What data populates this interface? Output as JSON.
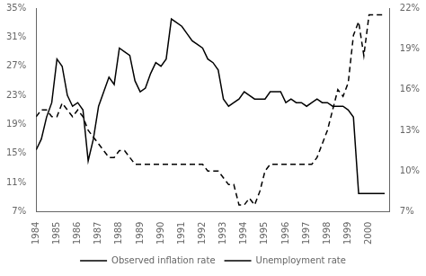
{
  "chart_data": {
    "type": "line",
    "x": [
      1984.0,
      1984.25,
      1984.5,
      1984.75,
      1985.0,
      1985.25,
      1985.5,
      1985.75,
      1986.0,
      1986.25,
      1986.5,
      1986.75,
      1987.0,
      1987.25,
      1987.5,
      1987.75,
      1988.0,
      1988.25,
      1988.5,
      1988.75,
      1989.0,
      1989.25,
      1989.5,
      1989.75,
      1990.0,
      1990.25,
      1990.5,
      1990.75,
      1991.0,
      1991.25,
      1991.5,
      1991.75,
      1992.0,
      1992.25,
      1992.5,
      1992.75,
      1993.0,
      1993.25,
      1993.5,
      1993.75,
      1994.0,
      1994.25,
      1994.5,
      1994.75,
      1995.0,
      1995.25,
      1995.5,
      1995.75,
      1996.0,
      1996.25,
      1996.5,
      1996.75,
      1997.0,
      1997.25,
      1997.5,
      1997.75,
      1998.0,
      1998.25,
      1998.5,
      1998.75,
      1999.0,
      1999.25,
      1999.5,
      1999.75,
      2000.0,
      2000.25,
      2000.5,
      2000.75
    ],
    "series": [
      {
        "name": "Observed inflation rate",
        "color": "#000000",
        "line_style": "solid",
        "values": [
          15.5,
          17.0,
          20.0,
          22.0,
          28.0,
          27.0,
          23.0,
          21.5,
          22.0,
          21.0,
          14.0,
          17.0,
          21.5,
          23.5,
          25.5,
          24.5,
          29.5,
          29.0,
          28.5,
          25.0,
          23.5,
          24.0,
          26.0,
          27.5,
          27.0,
          28.0,
          33.5,
          33.0,
          32.5,
          31.5,
          30.5,
          30.0,
          29.5,
          28.0,
          27.5,
          26.5,
          22.5,
          21.5,
          22.0,
          22.5,
          23.5,
          23.0,
          22.5,
          22.5,
          22.5,
          23.5,
          23.5,
          23.5,
          22.0,
          22.5,
          22.0,
          22.0,
          21.5,
          22.0,
          22.5,
          22.0,
          22.0,
          21.5,
          21.5,
          21.5,
          21.0,
          20.0,
          9.5,
          9.5,
          9.5,
          9.5,
          9.5,
          9.5
        ]
      },
      {
        "name": "Unemployment rate",
        "color": "#000000",
        "line_style": "dashed",
        "axis": "y2",
        "values": [
          14.0,
          14.5,
          14.5,
          14.0,
          14.0,
          15.0,
          14.5,
          14.0,
          14.5,
          14.0,
          13.0,
          12.5,
          12.0,
          11.5,
          11.0,
          11.0,
          11.5,
          11.5,
          11.0,
          10.5,
          10.5,
          10.5,
          10.5,
          10.5,
          10.5,
          10.5,
          10.5,
          10.5,
          10.5,
          10.5,
          10.5,
          10.5,
          10.5,
          10.0,
          10.0,
          10.0,
          9.5,
          9.0,
          9.0,
          7.5,
          7.5,
          8.0,
          7.5,
          8.5,
          10.0,
          10.5,
          10.5,
          10.5,
          10.5,
          10.5,
          10.5,
          10.5,
          10.5,
          10.5,
          11.0,
          12.0,
          13.0,
          14.5,
          16.0,
          15.5,
          16.5,
          20.0,
          21.0,
          18.5,
          21.5,
          21.5,
          21.5,
          21.5
        ]
      }
    ],
    "xlim": [
      1984,
      2001
    ],
    "xticks": [
      1984,
      1985,
      1986,
      1987,
      1988,
      1989,
      1990,
      1991,
      1992,
      1993,
      1994,
      1995,
      1996,
      1997,
      1998,
      1999,
      2000
    ],
    "ylim": [
      7,
      35
    ],
    "yticks": [
      {
        "value": 7,
        "label": "7%"
      },
      {
        "value": 11,
        "label": "11%"
      },
      {
        "value": 15,
        "label": "15%"
      },
      {
        "value": 19,
        "label": "19%"
      },
      {
        "value": 23,
        "label": "23%"
      },
      {
        "value": 27,
        "label": "27%"
      },
      {
        "value": 31,
        "label": "31%"
      },
      {
        "value": 35,
        "label": "35%"
      }
    ],
    "y2lim": [
      7,
      22
    ],
    "y2ticks": [
      {
        "value": 7,
        "label": "7%"
      },
      {
        "value": 10,
        "label": "10%"
      },
      {
        "value": 13,
        "label": "13%"
      },
      {
        "value": 16,
        "label": "16%"
      },
      {
        "value": 19,
        "label": "19%"
      },
      {
        "value": 22,
        "label": "22%"
      }
    ],
    "grid": false,
    "legend": "bottom"
  }
}
